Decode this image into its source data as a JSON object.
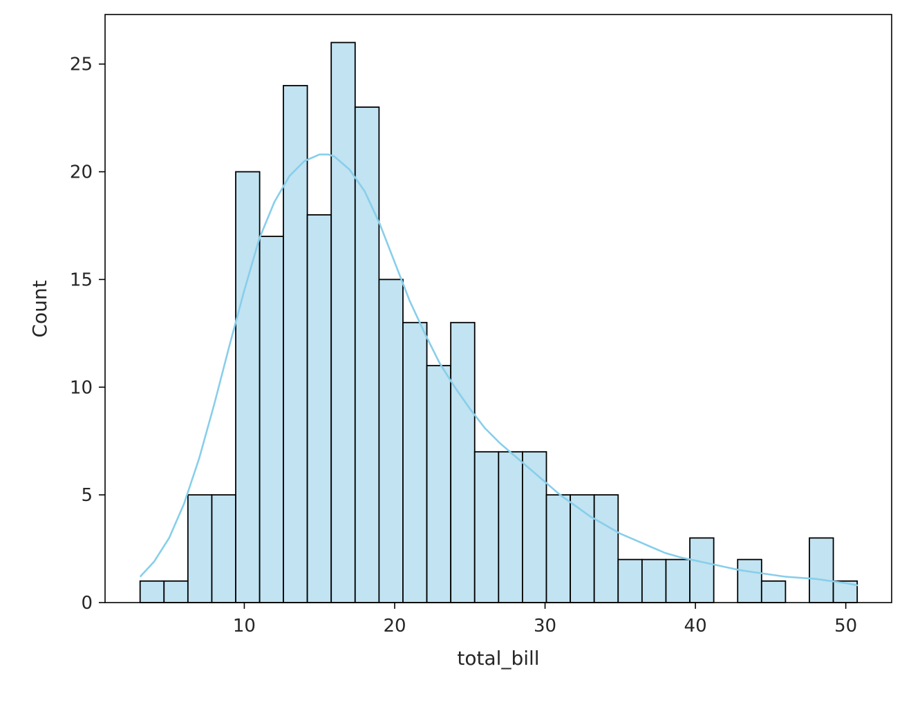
{
  "chart_data": {
    "type": "bar",
    "title": "",
    "xlabel": "total_bill",
    "ylabel": "Count",
    "xlim": [
      0.74,
      53.05
    ],
    "ylim": [
      0,
      27.3
    ],
    "xticks": [
      10,
      20,
      30,
      40,
      50
    ],
    "yticks": [
      0,
      5,
      10,
      15,
      20,
      25
    ],
    "grid": false,
    "bin_start": 3.07,
    "bin_width": 1.589,
    "bins": [
      {
        "x0": 3.07,
        "x1": 4.66,
        "count": 1
      },
      {
        "x0": 4.66,
        "x1": 6.25,
        "count": 1
      },
      {
        "x0": 6.25,
        "x1": 7.84,
        "count": 5
      },
      {
        "x0": 7.84,
        "x1": 9.43,
        "count": 5
      },
      {
        "x0": 9.43,
        "x1": 11.02,
        "count": 20
      },
      {
        "x0": 11.02,
        "x1": 12.6,
        "count": 17
      },
      {
        "x0": 12.6,
        "x1": 14.19,
        "count": 24
      },
      {
        "x0": 14.19,
        "x1": 15.78,
        "count": 18
      },
      {
        "x0": 15.78,
        "x1": 17.37,
        "count": 26
      },
      {
        "x0": 17.37,
        "x1": 18.96,
        "count": 23
      },
      {
        "x0": 18.96,
        "x1": 20.55,
        "count": 15
      },
      {
        "x0": 20.55,
        "x1": 22.14,
        "count": 13
      },
      {
        "x0": 22.14,
        "x1": 23.73,
        "count": 11
      },
      {
        "x0": 23.73,
        "x1": 25.32,
        "count": 13
      },
      {
        "x0": 25.32,
        "x1": 26.91,
        "count": 7
      },
      {
        "x0": 26.91,
        "x1": 28.5,
        "count": 7
      },
      {
        "x0": 28.5,
        "x1": 30.09,
        "count": 7
      },
      {
        "x0": 30.09,
        "x1": 31.68,
        "count": 5
      },
      {
        "x0": 31.68,
        "x1": 33.27,
        "count": 5
      },
      {
        "x0": 33.27,
        "x1": 34.86,
        "count": 5
      },
      {
        "x0": 34.86,
        "x1": 36.45,
        "count": 2
      },
      {
        "x0": 36.45,
        "x1": 38.04,
        "count": 2
      },
      {
        "x0": 38.04,
        "x1": 39.63,
        "count": 2
      },
      {
        "x0": 39.63,
        "x1": 41.22,
        "count": 3
      },
      {
        "x0": 41.22,
        "x1": 42.81,
        "count": 0
      },
      {
        "x0": 42.81,
        "x1": 44.4,
        "count": 2
      },
      {
        "x0": 44.4,
        "x1": 45.99,
        "count": 1
      },
      {
        "x0": 45.99,
        "x1": 47.58,
        "count": 0
      },
      {
        "x0": 47.58,
        "x1": 49.17,
        "count": 3
      },
      {
        "x0": 49.17,
        "x1": 50.76,
        "count": 1
      }
    ],
    "kde": {
      "x": [
        3.07,
        4,
        5,
        6,
        7,
        8,
        9,
        10,
        11,
        12,
        13,
        14,
        15,
        15.6,
        16,
        17,
        18,
        19,
        20,
        21,
        22,
        23,
        24,
        25,
        26,
        27,
        28,
        29,
        30,
        31,
        32,
        33,
        34,
        35,
        36,
        37,
        38,
        39,
        40,
        41,
        42,
        43,
        44,
        45,
        46,
        47,
        48,
        49,
        50,
        50.81
      ],
      "y": [
        1.2,
        1.9,
        3.0,
        4.6,
        6.7,
        9.2,
        11.9,
        14.5,
        16.9,
        18.6,
        19.8,
        20.5,
        20.8,
        20.8,
        20.7,
        20.1,
        19.1,
        17.6,
        15.8,
        14.0,
        12.5,
        11.1,
        10.0,
        9.0,
        8.1,
        7.4,
        6.8,
        6.2,
        5.6,
        5.0,
        4.5,
        4.0,
        3.6,
        3.2,
        2.9,
        2.6,
        2.3,
        2.1,
        1.95,
        1.8,
        1.65,
        1.5,
        1.4,
        1.3,
        1.2,
        1.15,
        1.1,
        1.0,
        0.9,
        0.8
      ]
    },
    "colors": {
      "bar_fill": "#c2e3f1",
      "bar_edge": "#000000",
      "kde_line": "#87ceeb",
      "axis": "#000000",
      "text": "#262626"
    }
  }
}
